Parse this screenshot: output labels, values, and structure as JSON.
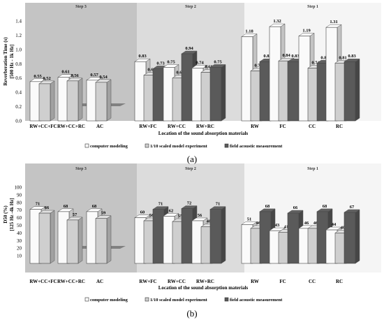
{
  "figure": {
    "caption_a": "(a)",
    "caption_b": "(b)"
  },
  "colors": {
    "panel_step3": "#c4c4c4",
    "panel_step2": "#dcdcdc",
    "panel_step1": "#f5f5f5",
    "bar_modeling": "#fafafa",
    "bar_scaled": "#cfcfcf",
    "bar_field": "#5a5a5a",
    "floor": "#808080"
  },
  "chart_data": [
    {
      "type": "bar",
      "ylabel_lines": [
        "Reverberation Time (s)",
        "[500 Hz - 1k Hz]"
      ],
      "xlabel": "Location of the sound absorption materials",
      "ylim": [
        0,
        1.4
      ],
      "yticks": [
        "0.0",
        "0.2",
        "0.4",
        "0.6",
        "0.8",
        "1.0",
        "1.2",
        "1.4"
      ],
      "groups": [
        {
          "label": "Step 3",
          "categories": [
            "RW+CC+FC",
            "RW+CC+RC",
            "AC"
          ]
        },
        {
          "label": "Step 2",
          "categories": [
            "RW+FC",
            "RW+CC",
            "RW+RC"
          ]
        },
        {
          "label": "Step 1",
          "categories": [
            "RW",
            "FC",
            "CC",
            "RC"
          ]
        }
      ],
      "categories": [
        "RW+CC+FC",
        "RW+CC+RC",
        "AC",
        "RW+FC",
        "RW+CC",
        "RW+RC",
        "RW",
        "FC",
        "CC",
        "RC"
      ],
      "series": [
        {
          "name": "computer modeling",
          "values": [
            0.55,
            0.61,
            0.57,
            0.83,
            0.75,
            0.74,
            1.18,
            1.32,
            1.19,
            1.31
          ],
          "labels": [
            "0.55",
            "0.61",
            "0.57",
            "0.83",
            "0.75",
            "0.74",
            "1.18",
            "1.32",
            "1.19",
            "1.31"
          ]
        },
        {
          "name": "1/10 scaled model experiment",
          "values": [
            0.52,
            0.56,
            0.54,
            0.64,
            0.6,
            0.68,
            0.7,
            0.84,
            0.74,
            0.81
          ],
          "labels": [
            "0.52",
            "0.56",
            "0.54",
            "0.64",
            "0.60",
            "0.68",
            "0.70",
            "0.84",
            "0.74",
            "0.81"
          ]
        },
        {
          "name": "field acoustic measurement",
          "values": [
            null,
            null,
            null,
            0.73,
            0.94,
            0.75,
            0.83,
            0.83,
            0.81,
            0.83
          ],
          "labels": [
            "",
            "",
            "",
            "0.73",
            "0.94",
            "0.75",
            "0.83",
            "0.83",
            "0.81",
            "0.83"
          ]
        }
      ]
    },
    {
      "type": "bar",
      "ylabel_lines": [
        "D50 (%)",
        "[125 Hz -4k Hz]"
      ],
      "xlabel": "Location of the sound absorption materials",
      "ylim": [
        0,
        100
      ],
      "yticks": [
        "10",
        "20",
        "30",
        "40",
        "50",
        "60",
        "70",
        "80",
        "90",
        "100"
      ],
      "groups": [
        {
          "label": "Step 3",
          "categories": [
            "RW+CC+FC",
            "RW+CC+RC",
            "AC"
          ]
        },
        {
          "label": "Step 2",
          "categories": [
            "RW+FC",
            "RW+CC",
            "RW+RC"
          ]
        },
        {
          "label": "Step 1",
          "categories": [
            "RW",
            "FC",
            "CC",
            "RC"
          ]
        }
      ],
      "categories": [
        "RW+CC+FC",
        "RW+CC+RC",
        "AC",
        "RW+FC",
        "RW+CC",
        "RW+RC",
        "RW",
        "FC",
        "CC",
        "RC"
      ],
      "series": [
        {
          "name": "computer modeling",
          "values": [
            71,
            68,
            68,
            60,
            62,
            56,
            51,
            43,
            46,
            44
          ],
          "labels": [
            "71",
            "68",
            "68",
            "60",
            "62",
            "56",
            "51",
            "43",
            "46",
            "44"
          ]
        },
        {
          "name": "1/10 scaled model experiment",
          "values": [
            66,
            57,
            59,
            56,
            55,
            48,
            46,
            41,
            46,
            40
          ],
          "labels": [
            "66",
            "57",
            "59",
            "56",
            "55",
            "48",
            "46",
            "41",
            "46",
            "40"
          ]
        },
        {
          "name": "field acoustic measurement",
          "values": [
            null,
            null,
            null,
            71,
            72,
            71,
            68,
            66,
            68,
            67
          ],
          "labels": [
            "",
            "",
            "",
            "71",
            "72",
            "71",
            "68",
            "66",
            "68",
            "67"
          ]
        }
      ]
    }
  ]
}
